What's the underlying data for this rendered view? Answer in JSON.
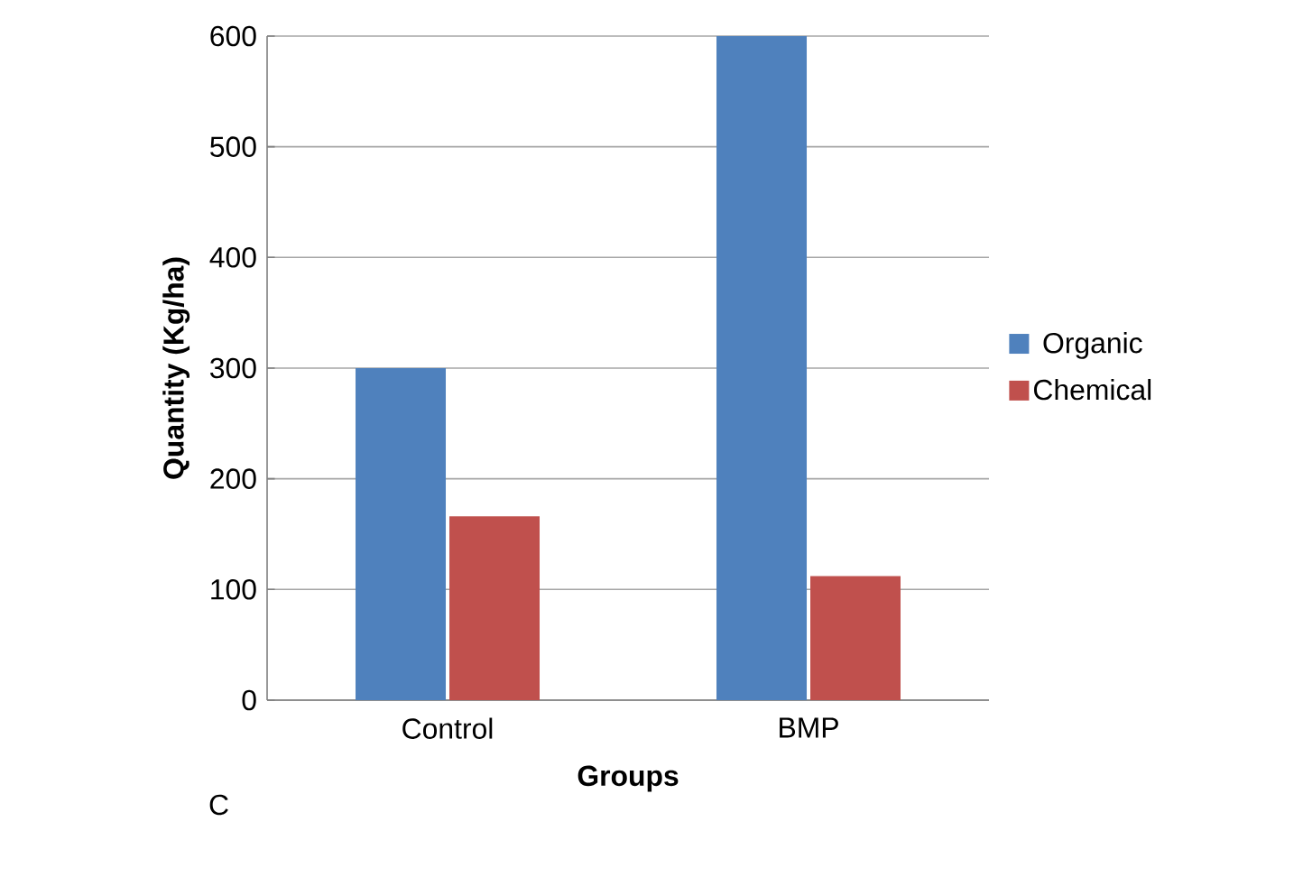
{
  "chart_data": {
    "type": "bar",
    "xlabel": "Groups",
    "ylabel": "Quantity (Kg/ha)",
    "categories": [
      "Control",
      "BMP"
    ],
    "series": [
      {
        "name": "Organic",
        "color": "#4f81bd",
        "values": [
          300,
          600
        ]
      },
      {
        "name": "Chemical",
        "color": "#c0504d",
        "values": [
          166,
          112
        ]
      }
    ],
    "ylim": [
      0,
      600
    ],
    "yticks": [
      0,
      100,
      200,
      300,
      400,
      500,
      600
    ],
    "grid": "y",
    "legend": "right",
    "annotations": [
      "C"
    ]
  }
}
